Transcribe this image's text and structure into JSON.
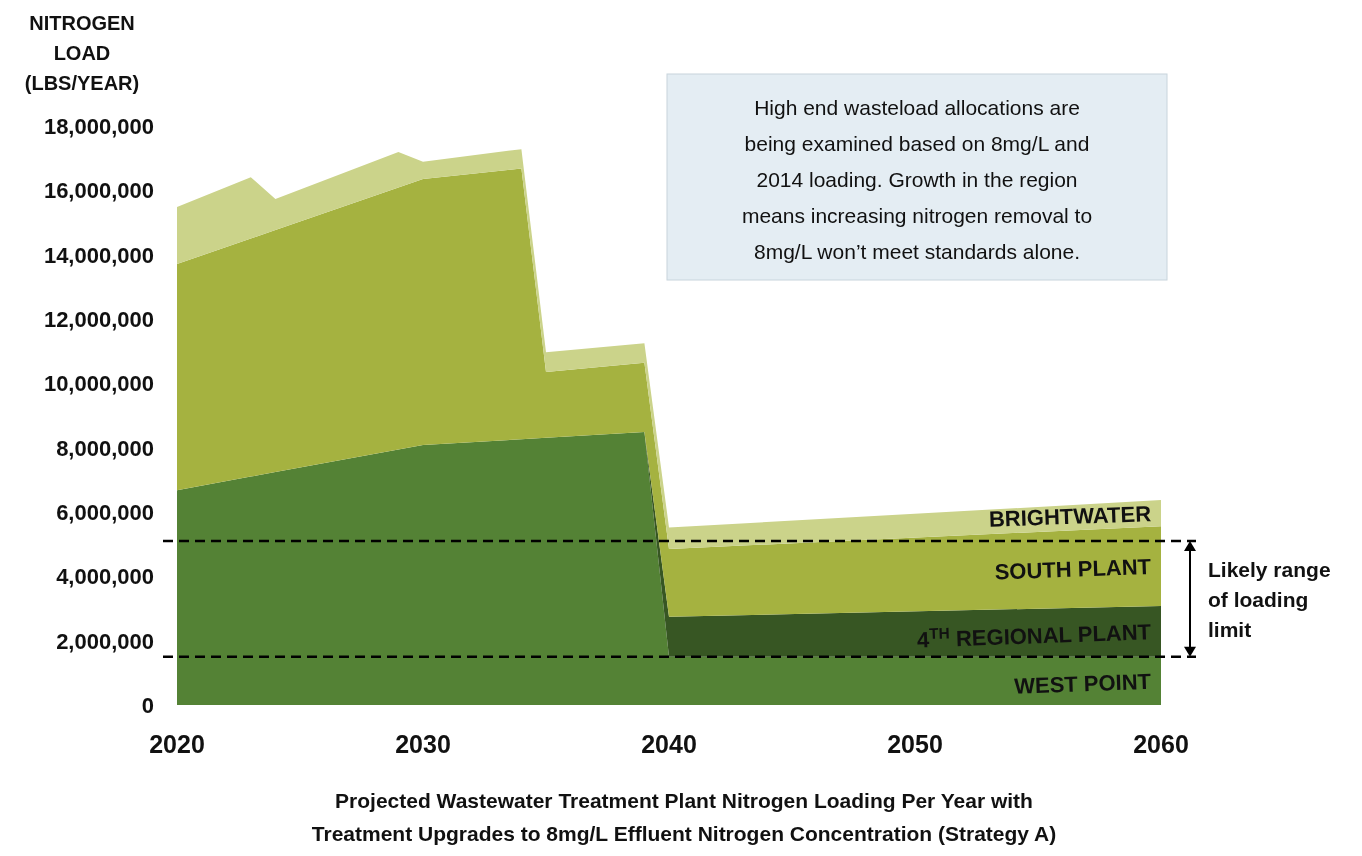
{
  "chart_data": {
    "type": "area",
    "stacked": true,
    "title": "Projected Wastewater Treatment Plant Nitrogen Loading Per Year with\nTreatment Upgrades to 8mg/L Effluent Nitrogen Concentration (Strategy A)",
    "ylabel": "NITROGEN\nLOAD\n(LBS/YEAR)",
    "x": [
      2020,
      2023,
      2024,
      2029,
      2030,
      2034,
      2035,
      2039,
      2040,
      2060
    ],
    "series": [
      {
        "name": "WEST POINT",
        "color": "#548235",
        "values": [
          6680000,
          7100000,
          7240000,
          7940000,
          8080000,
          8260000,
          8310000,
          8490000,
          1500000,
          1500000
        ]
      },
      {
        "name": "4$^{TH}$ REGIONAL PLANT",
        "color": "#375623",
        "values": [
          0,
          0,
          0,
          0,
          0,
          0,
          0,
          0,
          1240000,
          1580000
        ]
      },
      {
        "name": "SOUTH PLANT",
        "color": "#a5b240",
        "values": [
          7030000,
          7400000,
          7530000,
          8150000,
          8270000,
          8420000,
          2040000,
          2150000,
          2110000,
          2480000
        ]
      },
      {
        "name": "BRIGHTWATER",
        "color": "#cbd38a",
        "values": [
          1770000,
          1910000,
          960000,
          1100000,
          540000,
          600000,
          620000,
          610000,
          670000,
          810000
        ]
      }
    ],
    "xlim": [
      2020,
      2060
    ],
    "xticks": [
      2020,
      2030,
      2040,
      2050,
      2060
    ],
    "ylim": [
      0,
      18000000
    ],
    "yticks": [
      0,
      {
        "value": 2000000,
        "label": "2,000,000"
      },
      {
        "value": 4000000,
        "label": "4,000,000"
      },
      {
        "value": 6000000,
        "label": "6,000,000"
      },
      {
        "value": 8000000,
        "label": "8,000,000"
      },
      {
        "value": 10000000,
        "label": "10,000,000"
      },
      {
        "value": 12000000,
        "label": "12,000,000"
      },
      {
        "value": 14000000,
        "label": "14,000,000"
      },
      {
        "value": 16000000,
        "label": "16,000,000"
      },
      {
        "value": 18000000,
        "label": "18,000,000"
      }
    ],
    "ref_lines": [
      {
        "axis": "y",
        "value": 5100000,
        "color": "#000000",
        "line_style": "dashed"
      },
      {
        "axis": "y",
        "value": 1500000,
        "color": "#000000",
        "line_style": "dashed"
      }
    ],
    "annotations": [
      "High end wasteload allocations are\nbeing examined based on 8mg/L and\n2014 loading. Growth in the region\nmeans increasing nitrogen removal to\n8mg/L won’t meet standards alone.",
      "Likely range\nof loading\nlimit"
    ],
    "grid": false,
    "legend": false
  }
}
